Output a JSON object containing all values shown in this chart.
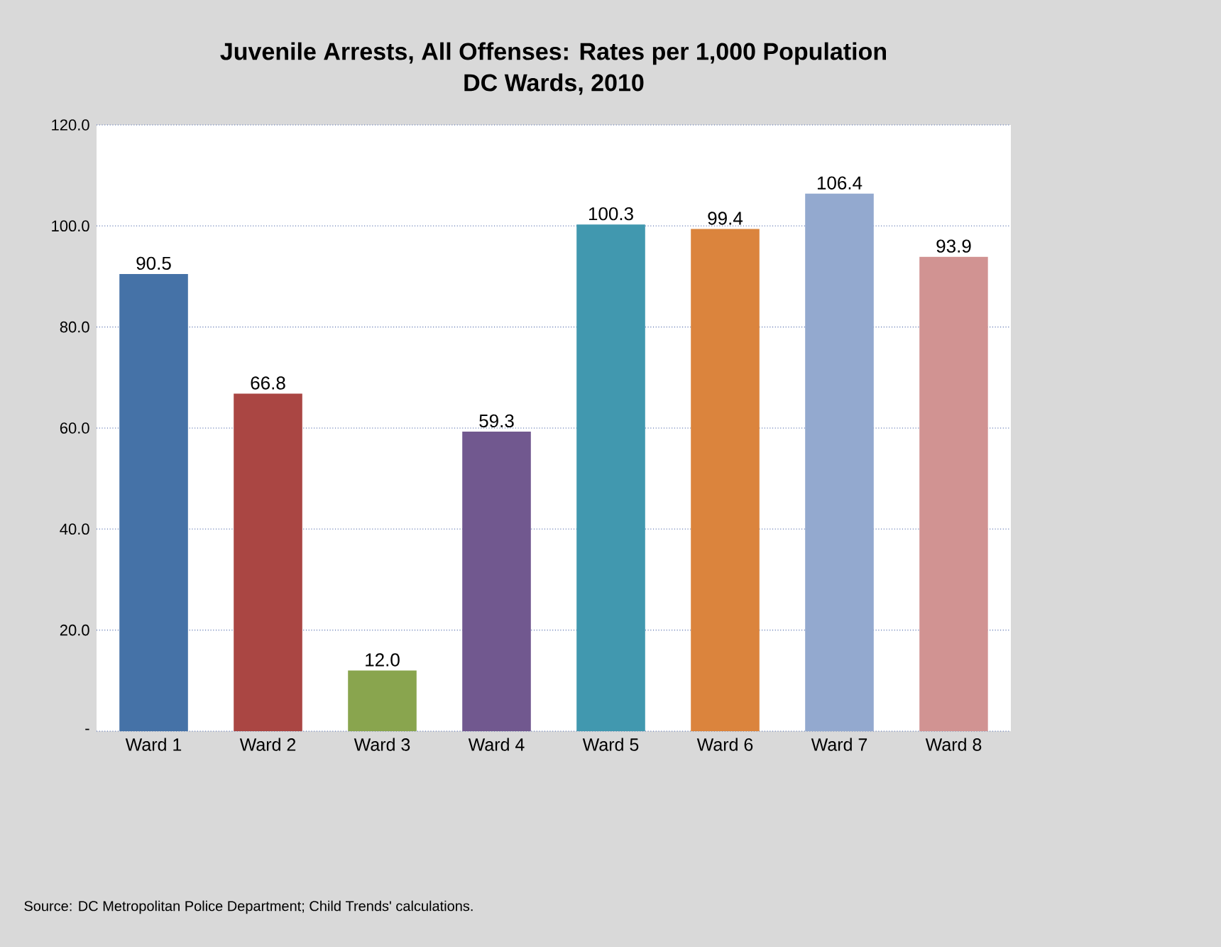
{
  "chart_data": {
    "type": "bar",
    "title": "Juvenile Arrests, All Offenses: Rates per 1,000 Population",
    "subtitle": "DC Wards, 2010",
    "categories": [
      "Ward 1",
      "Ward 2",
      "Ward 3",
      "Ward 4",
      "Ward 5",
      "Ward 6",
      "Ward 7",
      "Ward 8"
    ],
    "values": [
      90.5,
      66.8,
      12.0,
      59.3,
      100.3,
      99.4,
      106.4,
      93.9
    ],
    "colors": [
      "#4572a7",
      "#aa4643",
      "#89a54e",
      "#71588f",
      "#4198af",
      "#db843d",
      "#93a9cf",
      "#d19392"
    ],
    "ylim": [
      0,
      120
    ],
    "yticks": [
      {
        "value": 0,
        "label": "-"
      },
      {
        "value": 20,
        "label": "20.0"
      },
      {
        "value": 40,
        "label": "40.0"
      },
      {
        "value": 60,
        "label": "60.0"
      },
      {
        "value": 80,
        "label": "80.0"
      },
      {
        "value": 100,
        "label": "100.0"
      },
      {
        "value": 120,
        "label": "120.0"
      }
    ],
    "grid": "y",
    "value_labels": [
      "90.5",
      "66.8",
      "12.0",
      "59.3",
      "100.3",
      "99.4",
      "106.4",
      "93.9"
    ],
    "annotations": [
      "Source: DC Metropolitan Police Department; Child Trends' calculations."
    ]
  }
}
